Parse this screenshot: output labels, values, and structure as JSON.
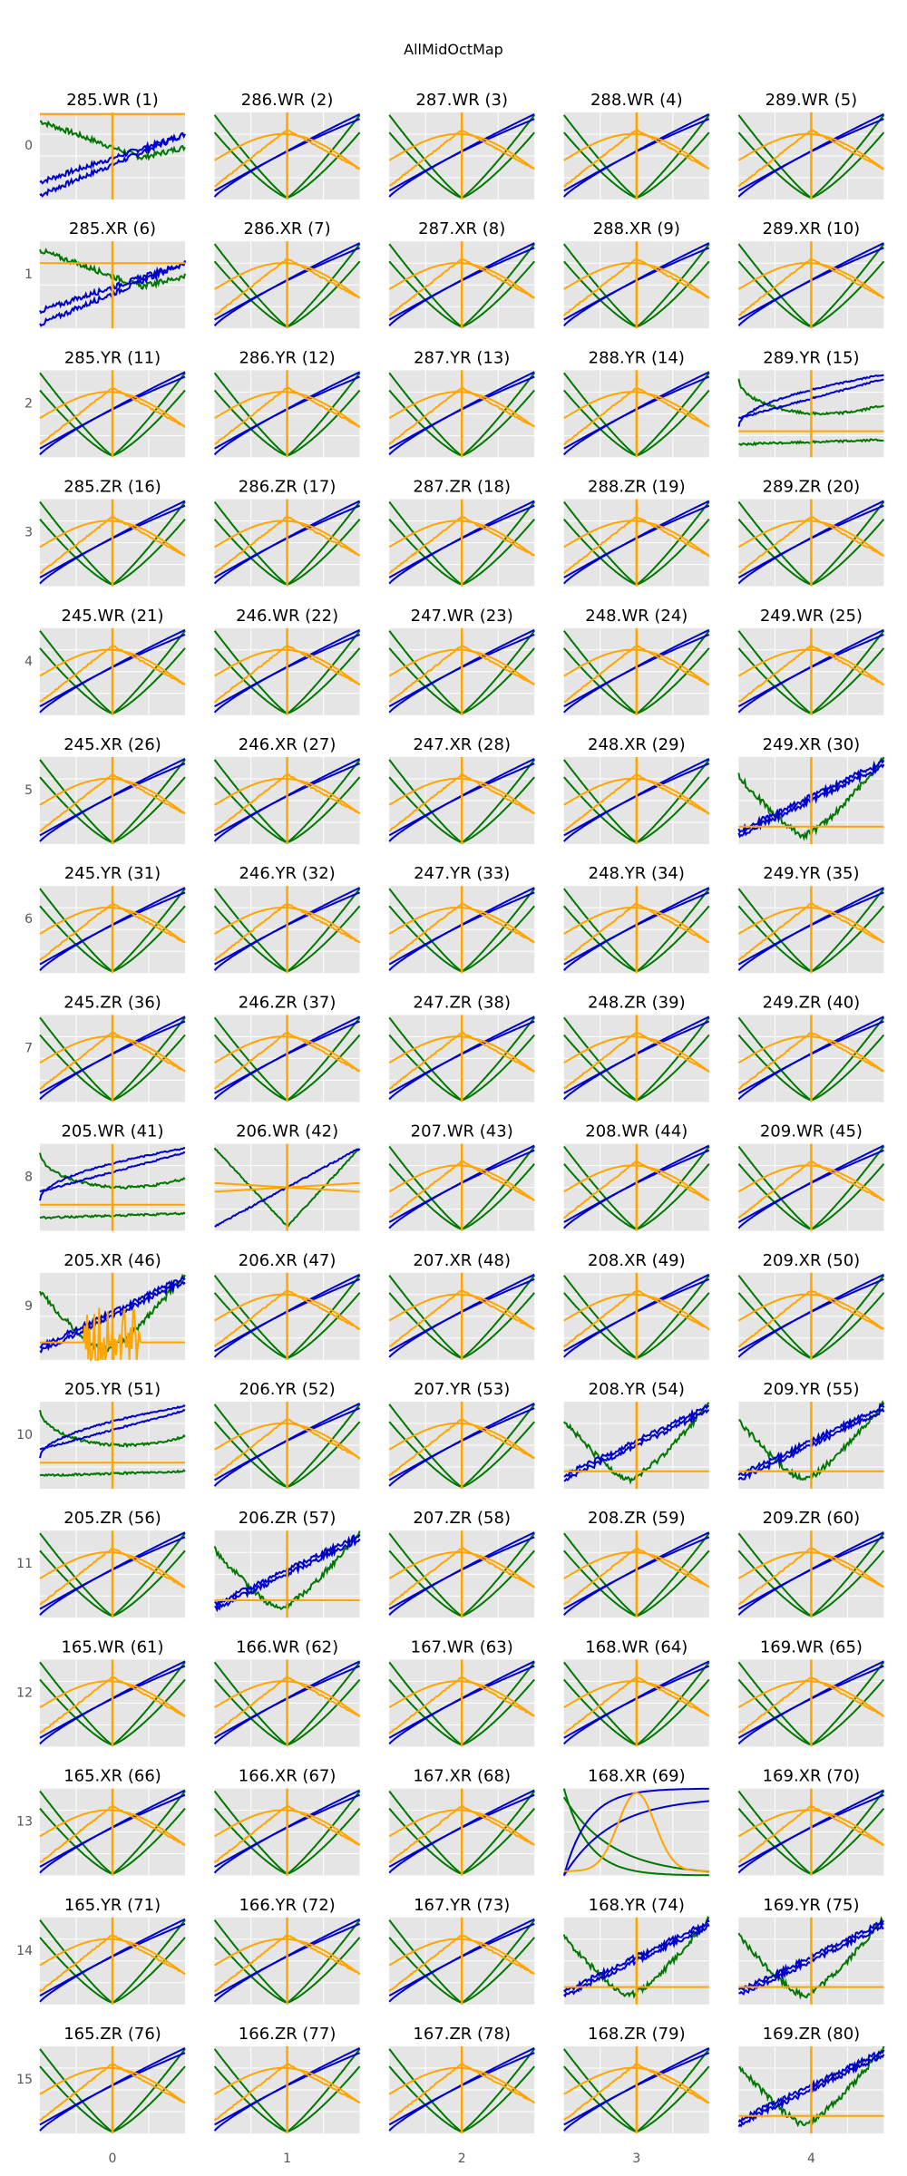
{
  "chart_data": {
    "type": "line",
    "title": "AllMidOctMap",
    "grid": true,
    "col_tick_labels": [
      "0",
      "1",
      "2",
      "3",
      "4"
    ],
    "row_tick_labels": [
      "0",
      "1",
      "2",
      "3",
      "4",
      "5",
      "6",
      "7",
      "8",
      "9",
      "10",
      "11",
      "12",
      "13",
      "14",
      "15"
    ],
    "colors": {
      "panel_bg": "#e5e5e5",
      "grid": "#ffffff",
      "blue": "#0000cc",
      "green": "#007700",
      "orange": "#ffa500"
    },
    "subplots": [
      {
        "label": "285.WR (1)",
        "style": "anom_a"
      },
      {
        "label": "286.WR (2)",
        "style": "normal"
      },
      {
        "label": "287.WR (3)",
        "style": "normal"
      },
      {
        "label": "288.WR (4)",
        "style": "normal"
      },
      {
        "label": "289.WR (5)",
        "style": "normal"
      },
      {
        "label": "285.XR (6)",
        "style": "anom_b"
      },
      {
        "label": "286.XR (7)",
        "style": "normal"
      },
      {
        "label": "287.XR (8)",
        "style": "normal"
      },
      {
        "label": "288.XR (9)",
        "style": "normal"
      },
      {
        "label": "289.XR (10)",
        "style": "normal"
      },
      {
        "label": "285.YR (11)",
        "style": "normal"
      },
      {
        "label": "286.YR (12)",
        "style": "normal"
      },
      {
        "label": "287.YR (13)",
        "style": "normal"
      },
      {
        "label": "288.YR (14)",
        "style": "normal"
      },
      {
        "label": "289.YR (15)",
        "style": "anom_c"
      },
      {
        "label": "285.ZR (16)",
        "style": "normal"
      },
      {
        "label": "286.ZR (17)",
        "style": "normal"
      },
      {
        "label": "287.ZR (18)",
        "style": "normal"
      },
      {
        "label": "288.ZR (19)",
        "style": "normal"
      },
      {
        "label": "289.ZR (20)",
        "style": "normal"
      },
      {
        "label": "245.WR (21)",
        "style": "normal"
      },
      {
        "label": "246.WR (22)",
        "style": "normal"
      },
      {
        "label": "247.WR (23)",
        "style": "normal"
      },
      {
        "label": "248.WR (24)",
        "style": "normal"
      },
      {
        "label": "249.WR (25)",
        "style": "normal"
      },
      {
        "label": "245.XR (26)",
        "style": "normal"
      },
      {
        "label": "246.XR (27)",
        "style": "normal"
      },
      {
        "label": "247.XR (28)",
        "style": "normal"
      },
      {
        "label": "248.XR (29)",
        "style": "normal"
      },
      {
        "label": "249.XR (30)",
        "style": "anom_d"
      },
      {
        "label": "245.YR (31)",
        "style": "normal"
      },
      {
        "label": "246.YR (32)",
        "style": "normal"
      },
      {
        "label": "247.YR (33)",
        "style": "normal"
      },
      {
        "label": "248.YR (34)",
        "style": "normal"
      },
      {
        "label": "249.YR (35)",
        "style": "normal"
      },
      {
        "label": "245.ZR (36)",
        "style": "normal"
      },
      {
        "label": "246.ZR (37)",
        "style": "normal"
      },
      {
        "label": "247.ZR (38)",
        "style": "normal"
      },
      {
        "label": "248.ZR (39)",
        "style": "normal"
      },
      {
        "label": "249.ZR (40)",
        "style": "normal"
      },
      {
        "label": "205.WR (41)",
        "style": "anom_c"
      },
      {
        "label": "206.WR (42)",
        "style": "anom_e"
      },
      {
        "label": "207.WR (43)",
        "style": "normal"
      },
      {
        "label": "208.WR (44)",
        "style": "normal"
      },
      {
        "label": "209.WR (45)",
        "style": "normal"
      },
      {
        "label": "205.XR (46)",
        "style": "anom_f"
      },
      {
        "label": "206.XR (47)",
        "style": "normal"
      },
      {
        "label": "207.XR (48)",
        "style": "normal"
      },
      {
        "label": "208.XR (49)",
        "style": "normal"
      },
      {
        "label": "209.XR (50)",
        "style": "normal"
      },
      {
        "label": "205.YR (51)",
        "style": "anom_c"
      },
      {
        "label": "206.YR (52)",
        "style": "normal"
      },
      {
        "label": "207.YR (53)",
        "style": "normal"
      },
      {
        "label": "208.YR (54)",
        "style": "anom_d"
      },
      {
        "label": "209.YR (55)",
        "style": "anom_g"
      },
      {
        "label": "205.ZR (56)",
        "style": "normal"
      },
      {
        "label": "206.ZR (57)",
        "style": "anom_d"
      },
      {
        "label": "207.ZR (58)",
        "style": "normal"
      },
      {
        "label": "208.ZR (59)",
        "style": "normal"
      },
      {
        "label": "209.ZR (60)",
        "style": "normal"
      },
      {
        "label": "165.WR (61)",
        "style": "normal"
      },
      {
        "label": "166.WR (62)",
        "style": "normal"
      },
      {
        "label": "167.WR (63)",
        "style": "normal"
      },
      {
        "label": "168.WR (64)",
        "style": "normal"
      },
      {
        "label": "169.WR (65)",
        "style": "normal"
      },
      {
        "label": "165.XR (66)",
        "style": "normal"
      },
      {
        "label": "166.XR (67)",
        "style": "normal"
      },
      {
        "label": "167.XR (68)",
        "style": "normal"
      },
      {
        "label": "168.XR (69)",
        "style": "anom_h"
      },
      {
        "label": "169.XR (70)",
        "style": "normal"
      },
      {
        "label": "165.YR (71)",
        "style": "normal"
      },
      {
        "label": "166.YR (72)",
        "style": "normal"
      },
      {
        "label": "167.YR (73)",
        "style": "normal"
      },
      {
        "label": "168.YR (74)",
        "style": "anom_g"
      },
      {
        "label": "169.YR (75)",
        "style": "anom_g"
      },
      {
        "label": "165.ZR (76)",
        "style": "normal"
      },
      {
        "label": "166.ZR (77)",
        "style": "normal"
      },
      {
        "label": "167.ZR (78)",
        "style": "normal"
      },
      {
        "label": "168.ZR (79)",
        "style": "normal"
      },
      {
        "label": "169.ZR (80)",
        "style": "anom_d"
      }
    ]
  }
}
